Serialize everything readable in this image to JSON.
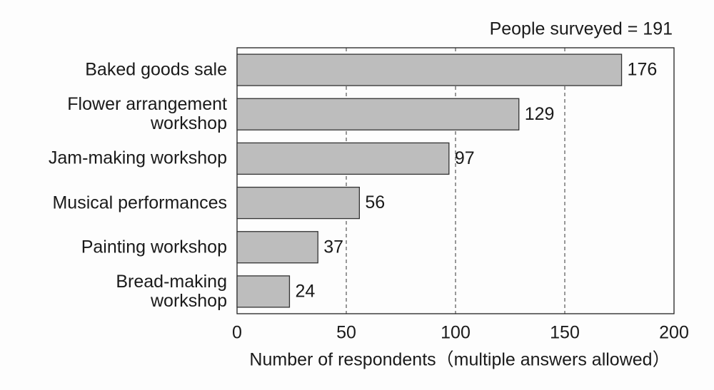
{
  "chart_data": {
    "type": "hbar",
    "title": "People surveyed = 191",
    "x_label": "Number of respondents（multiple answers allowed）",
    "categories": [
      "Baked goods sale",
      "Flower arrangement\nworkshop",
      "Jam-making workshop",
      "Musical performances",
      "Painting workshop",
      "Bread-making\nworkshop"
    ],
    "values": [
      176,
      129,
      97,
      56,
      37,
      24
    ],
    "color": "#bdbdbd",
    "xlim": [
      0,
      200
    ],
    "xticks": [
      0,
      50,
      100,
      150,
      200
    ],
    "grid": true
  }
}
